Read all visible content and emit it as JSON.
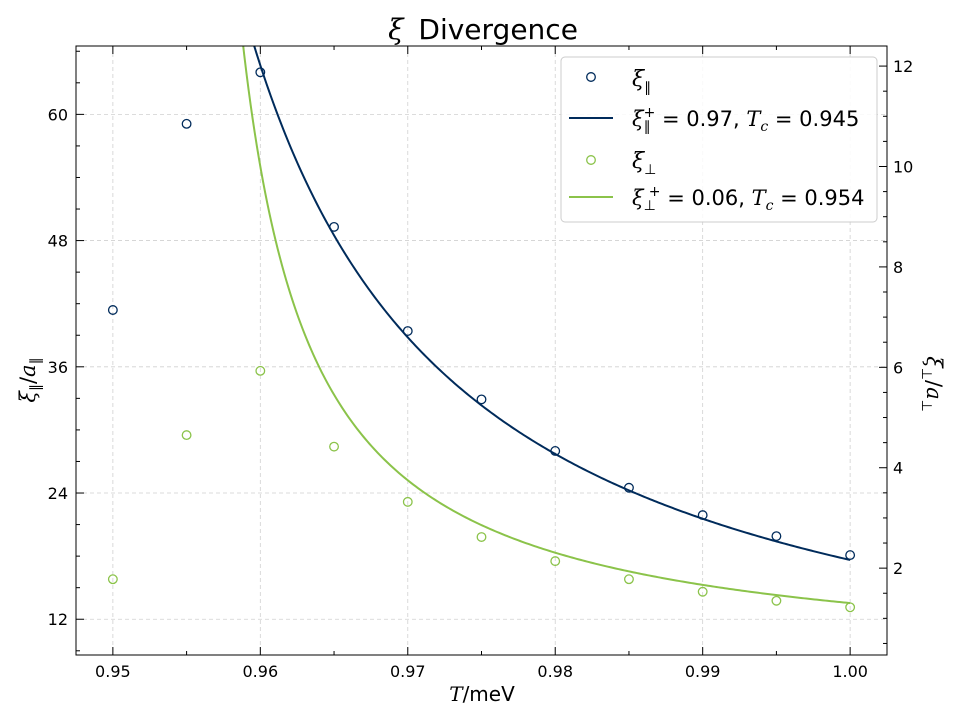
{
  "chart_data": {
    "type": "scatter",
    "title_main": "Divergence",
    "xlabel": "T/meV",
    "ylabel_left": "ξ∥/a∥",
    "ylabel_right": "ξ⊥/a⊥",
    "xlim": [
      0.9475,
      1.0025
    ],
    "ylim_left": [
      8.6,
      66.5
    ],
    "ylim_right": [
      0.27,
      12.4
    ],
    "x_ticks": [
      0.95,
      0.96,
      0.97,
      0.98,
      0.99,
      1.0
    ],
    "x_tick_labels": [
      "0.95",
      "0.96",
      "0.97",
      "0.98",
      "0.99",
      "1.00"
    ],
    "y_left_ticks": [
      12,
      24,
      36,
      48,
      60
    ],
    "y_right_ticks": [
      2,
      4,
      6,
      8,
      10,
      12
    ],
    "grid": true,
    "legend_position": "top-right",
    "colors": {
      "parallel": "#002b5b",
      "perp": "#8bc34a"
    },
    "series": [
      {
        "name": "ξ∥",
        "kind": "points",
        "axis": "left",
        "color_key": "parallel",
        "x": [
          0.95,
          0.955,
          0.96,
          0.965,
          0.97,
          0.975,
          0.98,
          0.985,
          0.99,
          0.995,
          1.0
        ],
        "y": [
          41.4,
          59.1,
          64.0,
          49.3,
          39.4,
          32.9,
          28.0,
          24.5,
          21.9,
          19.9,
          18.1
        ]
      },
      {
        "name": "ξ∥⁺ = 0.97, T_c = 0.945",
        "kind": "fit",
        "axis": "left",
        "color_key": "parallel",
        "amplitude": 0.97,
        "tc": 0.945,
        "exponent": 1,
        "x_range": [
          0.9585,
          1.0
        ]
      },
      {
        "name": "ξ⊥",
        "kind": "points",
        "axis": "right",
        "color_key": "perp",
        "x": [
          0.95,
          0.955,
          0.96,
          0.965,
          0.97,
          0.975,
          0.98,
          0.985,
          0.99,
          0.995,
          1.0
        ],
        "y": [
          1.78,
          4.65,
          5.93,
          4.42,
          3.32,
          2.62,
          2.14,
          1.78,
          1.53,
          1.35,
          1.22
        ]
      },
      {
        "name": "ξ⊥⁺ = 0.06, T_c = 0.954",
        "kind": "fit",
        "axis": "right",
        "color_key": "perp",
        "amplitude": 0.06,
        "tc": 0.954,
        "exponent": 1,
        "x_range": [
          0.9575,
          1.0
        ]
      }
    ]
  }
}
